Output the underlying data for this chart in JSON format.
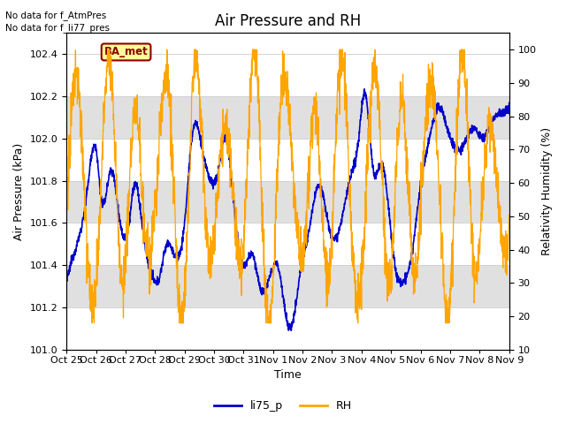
{
  "title": "Air Pressure and RH",
  "xlabel": "Time",
  "ylabel_left": "Air Pressure (kPa)",
  "ylabel_right": "Relativity Humidity (%)",
  "annotation_text": "No data for f_AtmPres\nNo data for f_li77_pres",
  "ba_met_label": "BA_met",
  "legend_labels": [
    "li75_p",
    "RH"
  ],
  "line_color_blue": "#0000cc",
  "line_color_orange": "#FFA500",
  "ba_met_bg": "#FFFF99",
  "ba_met_border": "#8B0000",
  "ba_met_text_color": "#8B0000",
  "ylim_left": [
    101.0,
    102.5
  ],
  "ylim_right": [
    10,
    105
  ],
  "yticks_left": [
    101.0,
    101.2,
    101.4,
    101.6,
    101.8,
    102.0,
    102.2,
    102.4
  ],
  "yticks_right": [
    10,
    20,
    30,
    40,
    50,
    60,
    70,
    80,
    90,
    100
  ],
  "grid_color": "#cccccc",
  "bg_band_color": "#e0e0e0",
  "xtick_labels": [
    "Oct 25",
    "Oct 26",
    "Oct 27",
    "Oct 28",
    "Oct 29",
    "Oct 30",
    "Oct 31",
    "Nov 1",
    "Nov 2",
    "Nov 3",
    "Nov 4",
    "Nov 5",
    "Nov 6",
    "Nov 7",
    "Nov 8",
    "Nov 9"
  ],
  "title_fontsize": 12,
  "axis_label_fontsize": 9,
  "tick_fontsize": 8,
  "legend_fontsize": 9,
  "annotation_fontsize": 7.5
}
